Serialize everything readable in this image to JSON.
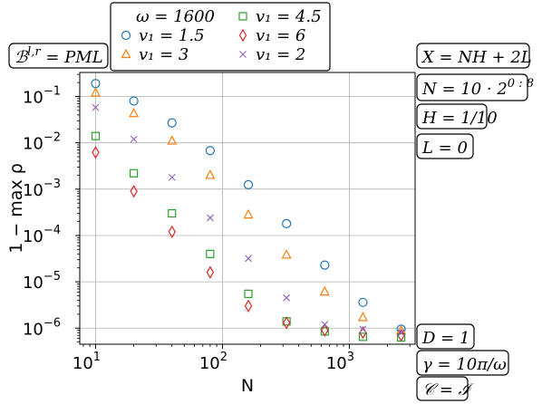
{
  "chart_data": {
    "type": "scatter",
    "title": "",
    "xlabel": "N",
    "ylabel": "1 − max ρ",
    "xscale": "log",
    "yscale": "log",
    "xlim": [
      7.5,
      3300
    ],
    "ylim": [
      4.5e-07,
      0.33
    ],
    "grid": true,
    "legend_position": "top",
    "x_ticks": [
      {
        "value": 10,
        "base": "10",
        "exp": "1"
      },
      {
        "value": 100,
        "base": "10",
        "exp": "2"
      },
      {
        "value": 1000,
        "base": "10",
        "exp": "3"
      }
    ],
    "y_ticks": [
      {
        "value": 0.1,
        "base": "10",
        "exp": "−1"
      },
      {
        "value": 0.01,
        "base": "10",
        "exp": "−2"
      },
      {
        "value": 0.001,
        "base": "10",
        "exp": "−3"
      },
      {
        "value": 0.0001,
        "base": "10",
        "exp": "−4"
      },
      {
        "value": 1e-05,
        "base": "10",
        "exp": "−5"
      },
      {
        "value": 1e-06,
        "base": "10",
        "exp": "−6"
      }
    ],
    "x": [
      10,
      20,
      40,
      80,
      160,
      320,
      640,
      1280,
      2560
    ],
    "legend_header": "ω = 1600",
    "series": [
      {
        "name": "v₁ = 1.5",
        "marker": "circle",
        "color": "#1f77b4",
        "values": [
          0.19,
          0.08,
          0.027,
          0.0068,
          0.00125,
          0.00018,
          2.3e-05,
          3.6e-06,
          9.5e-07
        ]
      },
      {
        "name": "v₁ = 3",
        "marker": "triangle",
        "color": "#ff7f0e",
        "values": [
          0.12,
          0.043,
          0.011,
          0.002,
          0.00028,
          3.8e-05,
          6.1e-06,
          1.7e-06,
          8.8e-07
        ]
      },
      {
        "name": "v₁ = 4.5",
        "marker": "square",
        "color": "#2ca02c",
        "values": [
          0.014,
          0.0022,
          0.0003,
          4e-05,
          5.5e-06,
          1.4e-06,
          8.5e-07,
          6.5e-07,
          6.3e-07
        ]
      },
      {
        "name": "v₁ = 6",
        "marker": "diamond",
        "color": "#d62728",
        "values": [
          0.0062,
          0.0009,
          0.00012,
          1.6e-05,
          3e-06,
          1.3e-06,
          9e-07,
          8e-07,
          7e-07
        ]
      },
      {
        "name": "v₁ = 2",
        "marker": "x",
        "color": "#9467bd",
        "values": [
          0.058,
          0.012,
          0.0018,
          0.00024,
          3.2e-05,
          4.5e-06,
          1.2e-06,
          9.5e-07,
          8e-07
        ]
      }
    ],
    "annotations": {
      "boundary": "ℬ^{l,r} = PML",
      "X": "X = NH + 2L",
      "N": "N = 10 · 2^{0 : 8}",
      "H": "H = 1/10",
      "L": "L = 0",
      "D": "D = 1",
      "gamma": "γ = 10π/ω",
      "C": "𝒞 = ℐ"
    }
  }
}
